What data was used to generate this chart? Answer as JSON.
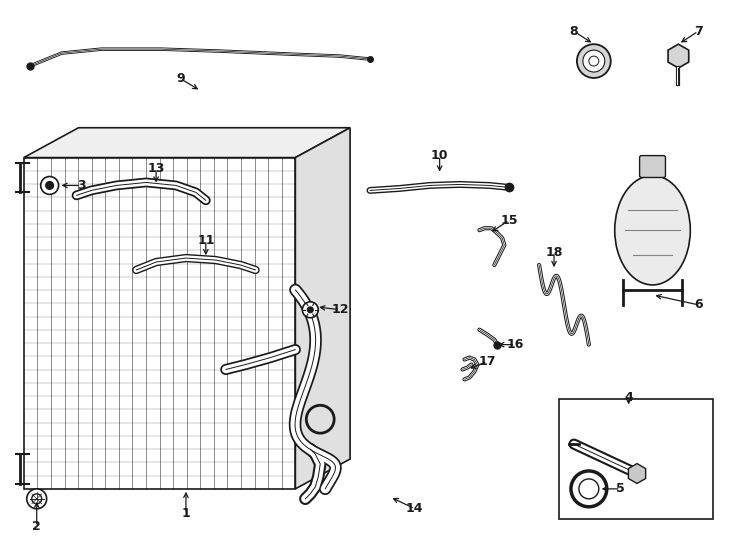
{
  "bg_color": "#ffffff",
  "line_color": "#1a1a1a",
  "fig_w": 7.34,
  "fig_h": 5.4,
  "dpi": 100
}
